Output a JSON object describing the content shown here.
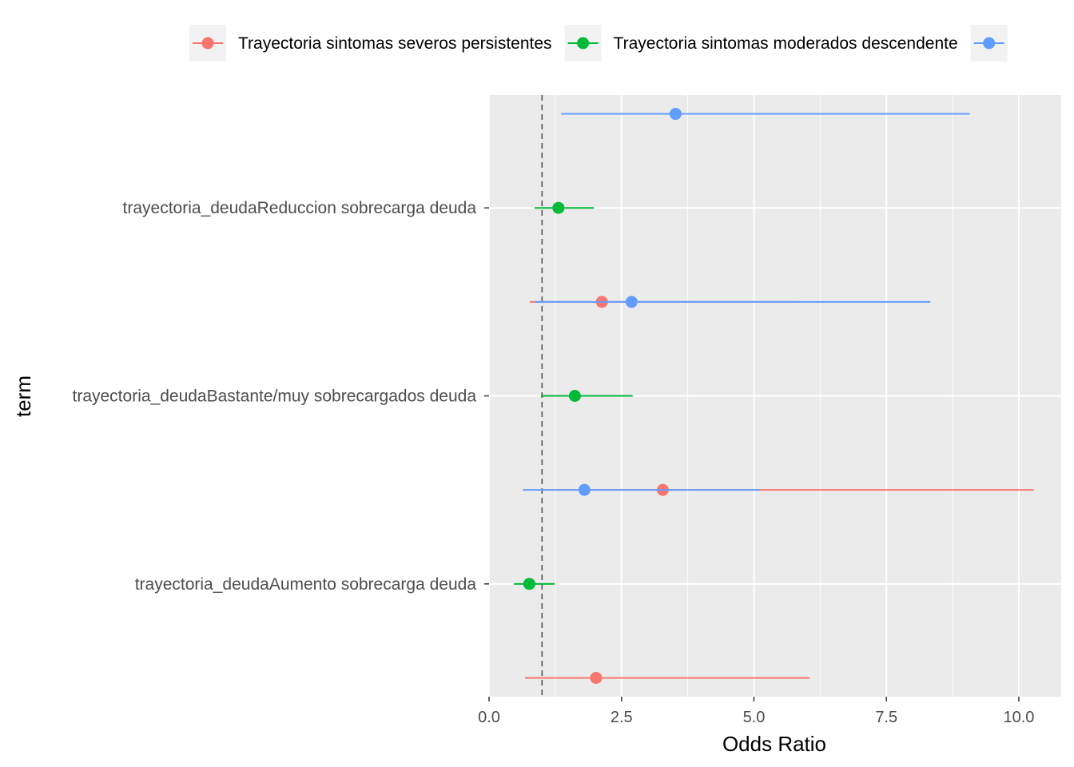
{
  "chart_data": {
    "type": "forest",
    "xlabel": "Odds Ratio",
    "ylabel": "term",
    "xlim": [
      0,
      10.8
    ],
    "x_ticks": [
      0.0,
      2.5,
      5.0,
      7.5,
      10.0
    ],
    "x_tick_labels": [
      "0.0",
      "2.5",
      "5.0",
      "7.5",
      "10.0"
    ],
    "reference_line": 1,
    "grid": true,
    "legend_position": "top",
    "terms": [
      "trayectoria_deudaAumento sobrecarga deuda",
      "trayectoria_deudaBastante/muy sobrecargados deuda",
      "trayectoria_deudaReduccion sobrecarga deuda"
    ],
    "series": [
      {
        "name": "Trayectoria sintomas severos persistentes",
        "color": "#F8766D",
        "points": [
          {
            "term": "trayectoria_deudaAumento sobrecarga deuda",
            "estimate": 2.02,
            "low": 0.68,
            "high": 6.05
          },
          {
            "term": "trayectoria_deudaBastante/muy sobrecargados deuda",
            "estimate": 3.28,
            "low": 1.05,
            "high": 10.28
          },
          {
            "term": "trayectoria_deudaReduccion sobrecarga deuda",
            "estimate": 2.13,
            "low": 0.77,
            "high": 5.85
          }
        ]
      },
      {
        "name": "Trayectoria sintomas moderados descendente",
        "color": "#00BA38",
        "points": [
          {
            "term": "trayectoria_deudaAumento sobrecarga deuda",
            "estimate": 0.76,
            "low": 0.47,
            "high": 1.24
          },
          {
            "term": "trayectoria_deudaBastante/muy sobrecargados deuda",
            "estimate": 1.62,
            "low": 0.98,
            "high": 2.71
          },
          {
            "term": "trayectoria_deudaReduccion sobrecarga deuda",
            "estimate": 1.31,
            "low": 0.86,
            "high": 1.98
          }
        ]
      },
      {
        "name": "",
        "color": "#619CFF",
        "points": [
          {
            "term": "trayectoria_deudaAumento sobrecarga deuda",
            "estimate": 1.8,
            "low": 0.64,
            "high": 5.11
          },
          {
            "term": "trayectoria_deudaBastante/muy sobrecargados deuda",
            "estimate": 2.69,
            "low": 0.87,
            "high": 8.33
          },
          {
            "term": "trayectoria_deudaReduccion sobrecarga deuda",
            "estimate": 3.52,
            "low": 1.36,
            "high": 9.07
          }
        ]
      }
    ]
  }
}
